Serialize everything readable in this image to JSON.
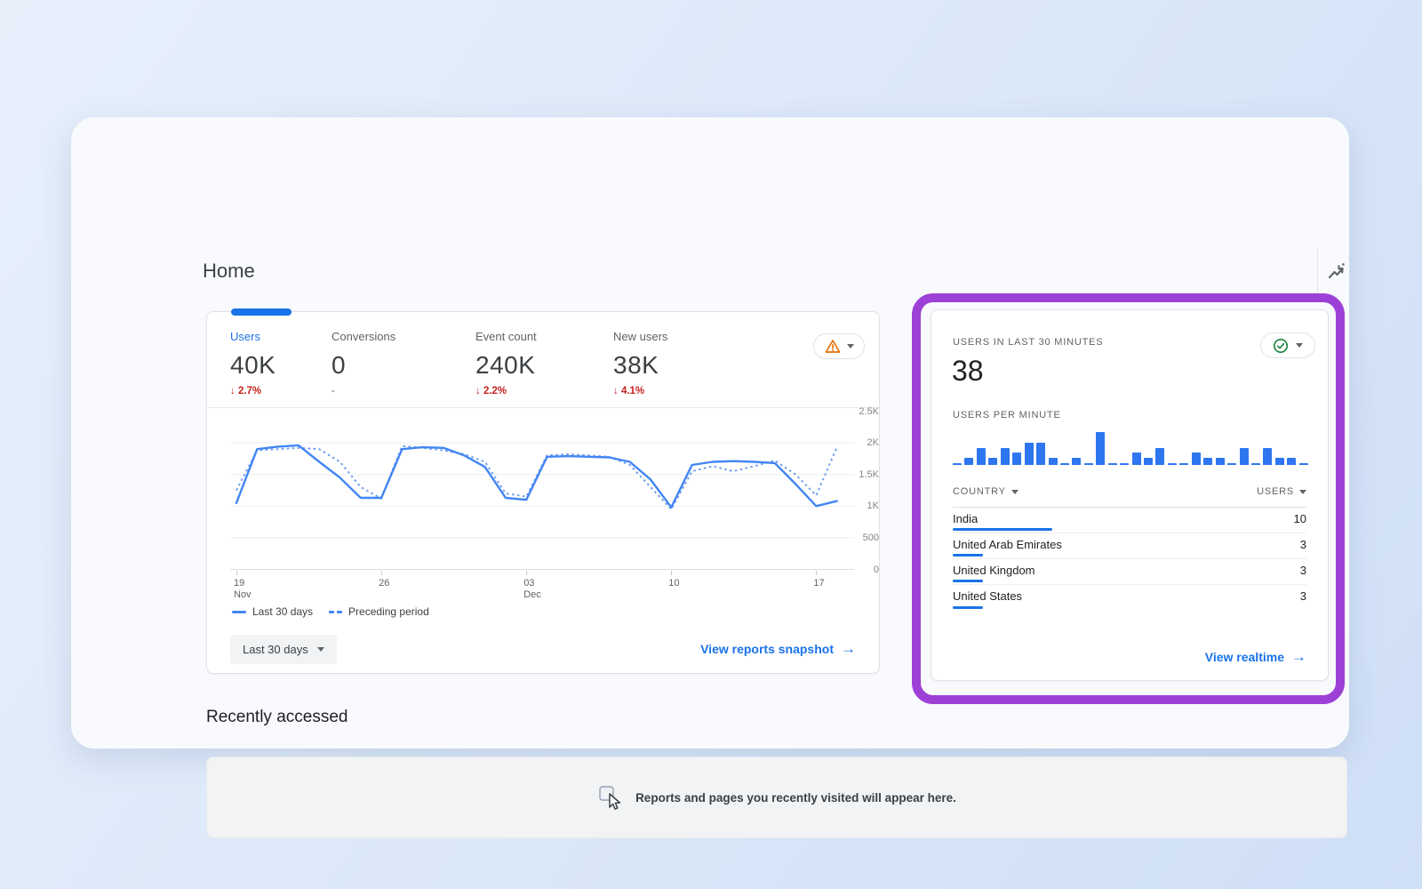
{
  "page": {
    "title": "Home"
  },
  "header": {
    "insights_icon": "trending-zigzag-icon"
  },
  "metrics_card": {
    "tabs": [
      {
        "label": "Users",
        "value": "40K",
        "delta": "2.7%",
        "delta_dir": "down",
        "selected": true
      },
      {
        "label": "Conversions",
        "value": "0",
        "delta": "-",
        "delta_dir": "none",
        "selected": false
      },
      {
        "label": "Event count",
        "value": "240K",
        "delta": "2.2%",
        "delta_dir": "down",
        "selected": false
      },
      {
        "label": "New users",
        "value": "38K",
        "delta": "4.1%",
        "delta_dir": "down",
        "selected": false
      }
    ],
    "legend": [
      {
        "label": "Last 30 days",
        "style": "solid"
      },
      {
        "label": "Preceding period",
        "style": "dashed"
      }
    ],
    "range_button": "Last 30 days",
    "view_link": "View reports snapshot",
    "warning_icon": "warning-triangle-icon"
  },
  "chart_data": [
    {
      "type": "line",
      "title": "Users over last 30 days vs preceding period",
      "y_ticks": [
        {
          "label": "2.5K",
          "value": 2500
        },
        {
          "label": "2K",
          "value": 2000
        },
        {
          "label": "1.5K",
          "value": 1500
        },
        {
          "label": "1K",
          "value": 1000
        },
        {
          "label": "500",
          "value": 500
        },
        {
          "label": "0",
          "value": 0
        }
      ],
      "ylim": [
        0,
        2500
      ],
      "x_ticks": [
        {
          "label": "19",
          "sub": "Nov",
          "day": 0
        },
        {
          "label": "26",
          "sub": "",
          "day": 7
        },
        {
          "label": "03",
          "sub": "Dec",
          "day": 14
        },
        {
          "label": "10",
          "sub": "",
          "day": 21
        },
        {
          "label": "17",
          "sub": "",
          "day": 28
        }
      ],
      "series": [
        {
          "name": "Last 30 days",
          "values": [
            1050,
            1900,
            1940,
            1960,
            1700,
            1450,
            1130,
            1130,
            1900,
            1930,
            1920,
            1800,
            1620,
            1130,
            1100,
            1780,
            1790,
            1780,
            1770,
            1700,
            1420,
            980,
            1650,
            1700,
            1710,
            1700,
            1680,
            1350,
            1000,
            1080
          ]
        },
        {
          "name": "Preceding period",
          "values": [
            1250,
            1880,
            1900,
            1920,
            1900,
            1700,
            1300,
            1120,
            1950,
            1920,
            1880,
            1820,
            1700,
            1200,
            1150,
            1800,
            1820,
            1800,
            1780,
            1650,
            1300,
            950,
            1550,
            1630,
            1550,
            1630,
            1720,
            1500,
            1170,
            1930
          ]
        }
      ],
      "grid": true,
      "legend_position": "bottom"
    },
    {
      "type": "bar",
      "title": "Users per minute",
      "values": [
        0,
        1,
        3,
        1,
        3,
        2,
        4,
        4,
        1,
        0,
        1,
        0,
        6,
        0,
        0,
        2,
        1,
        3,
        0,
        0,
        2,
        1,
        1,
        0,
        3,
        0,
        3,
        1,
        1,
        0
      ],
      "ylim": [
        0,
        6
      ]
    }
  ],
  "realtime_card": {
    "title": "USERS IN LAST 30 MINUTES",
    "value": "38",
    "status_icon": "check-circle-icon",
    "per_minute_label": "USERS PER MINUTE",
    "table": {
      "country_header": "COUNTRY",
      "users_header": "USERS",
      "max_users": 10,
      "rows": [
        {
          "country": "India",
          "users": 10
        },
        {
          "country": "United Arab Emirates",
          "users": 3
        },
        {
          "country": "United Kingdom",
          "users": 3
        },
        {
          "country": "United States",
          "users": 3
        }
      ]
    },
    "view_link": "View realtime"
  },
  "recently_accessed": {
    "title": "Recently accessed",
    "empty_message": "Reports and pages you recently visited will appear here.",
    "icon": "cursor-click-icon"
  },
  "colors": {
    "accent_blue": "#1a73e8",
    "chart_blue": "#4285f4",
    "dashed_blue": "#6d9eeb",
    "bar_blue": "#2e76f0",
    "negative_red": "#c5221f",
    "warning_orange": "#e8710a",
    "success_green": "#188038",
    "highlight_purple": "#9d41d6"
  }
}
